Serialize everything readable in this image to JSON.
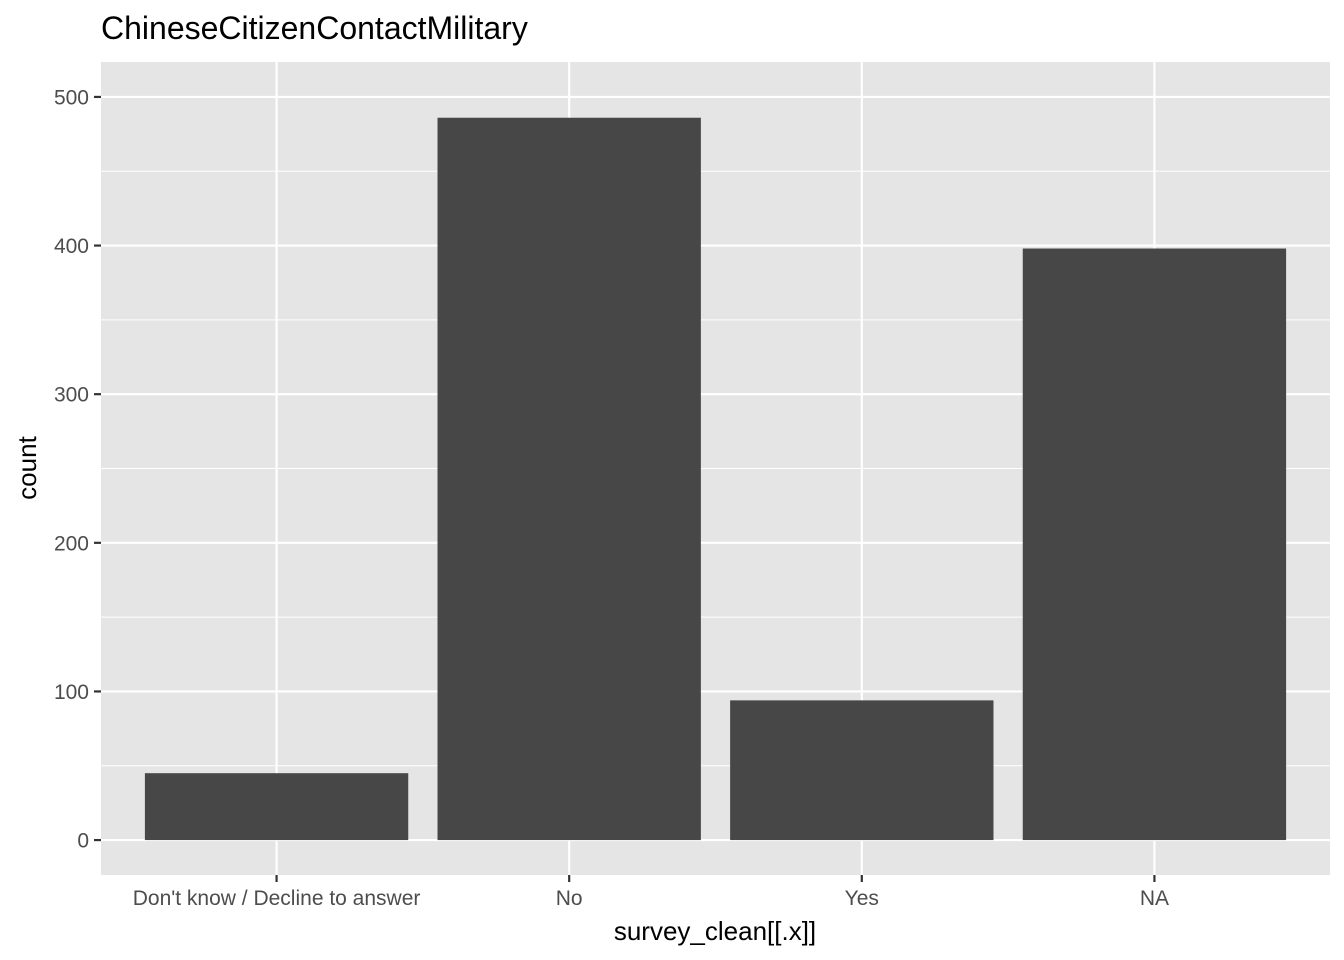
{
  "chart_data": {
    "type": "bar",
    "title": "ChineseCitizenContactMilitary",
    "xlabel": "survey_clean[[.x]]",
    "ylabel": "count",
    "categories": [
      "Don't know / Decline to answer",
      "No",
      "Yes",
      "NA"
    ],
    "values": [
      45,
      486,
      94,
      398
    ],
    "ylim": [
      -23.5,
      523.5
    ],
    "yticks": [
      0,
      100,
      200,
      300,
      400,
      500
    ],
    "ytick_labels": [
      "0",
      "100",
      "200",
      "300",
      "400",
      "500"
    ],
    "grid": true,
    "legend": "none",
    "colors": {
      "panel": "#e5e5e5",
      "grid": "#ffffff",
      "bar": "#474747",
      "tick": "#333333",
      "tick_label": "#4d4d4d"
    }
  }
}
